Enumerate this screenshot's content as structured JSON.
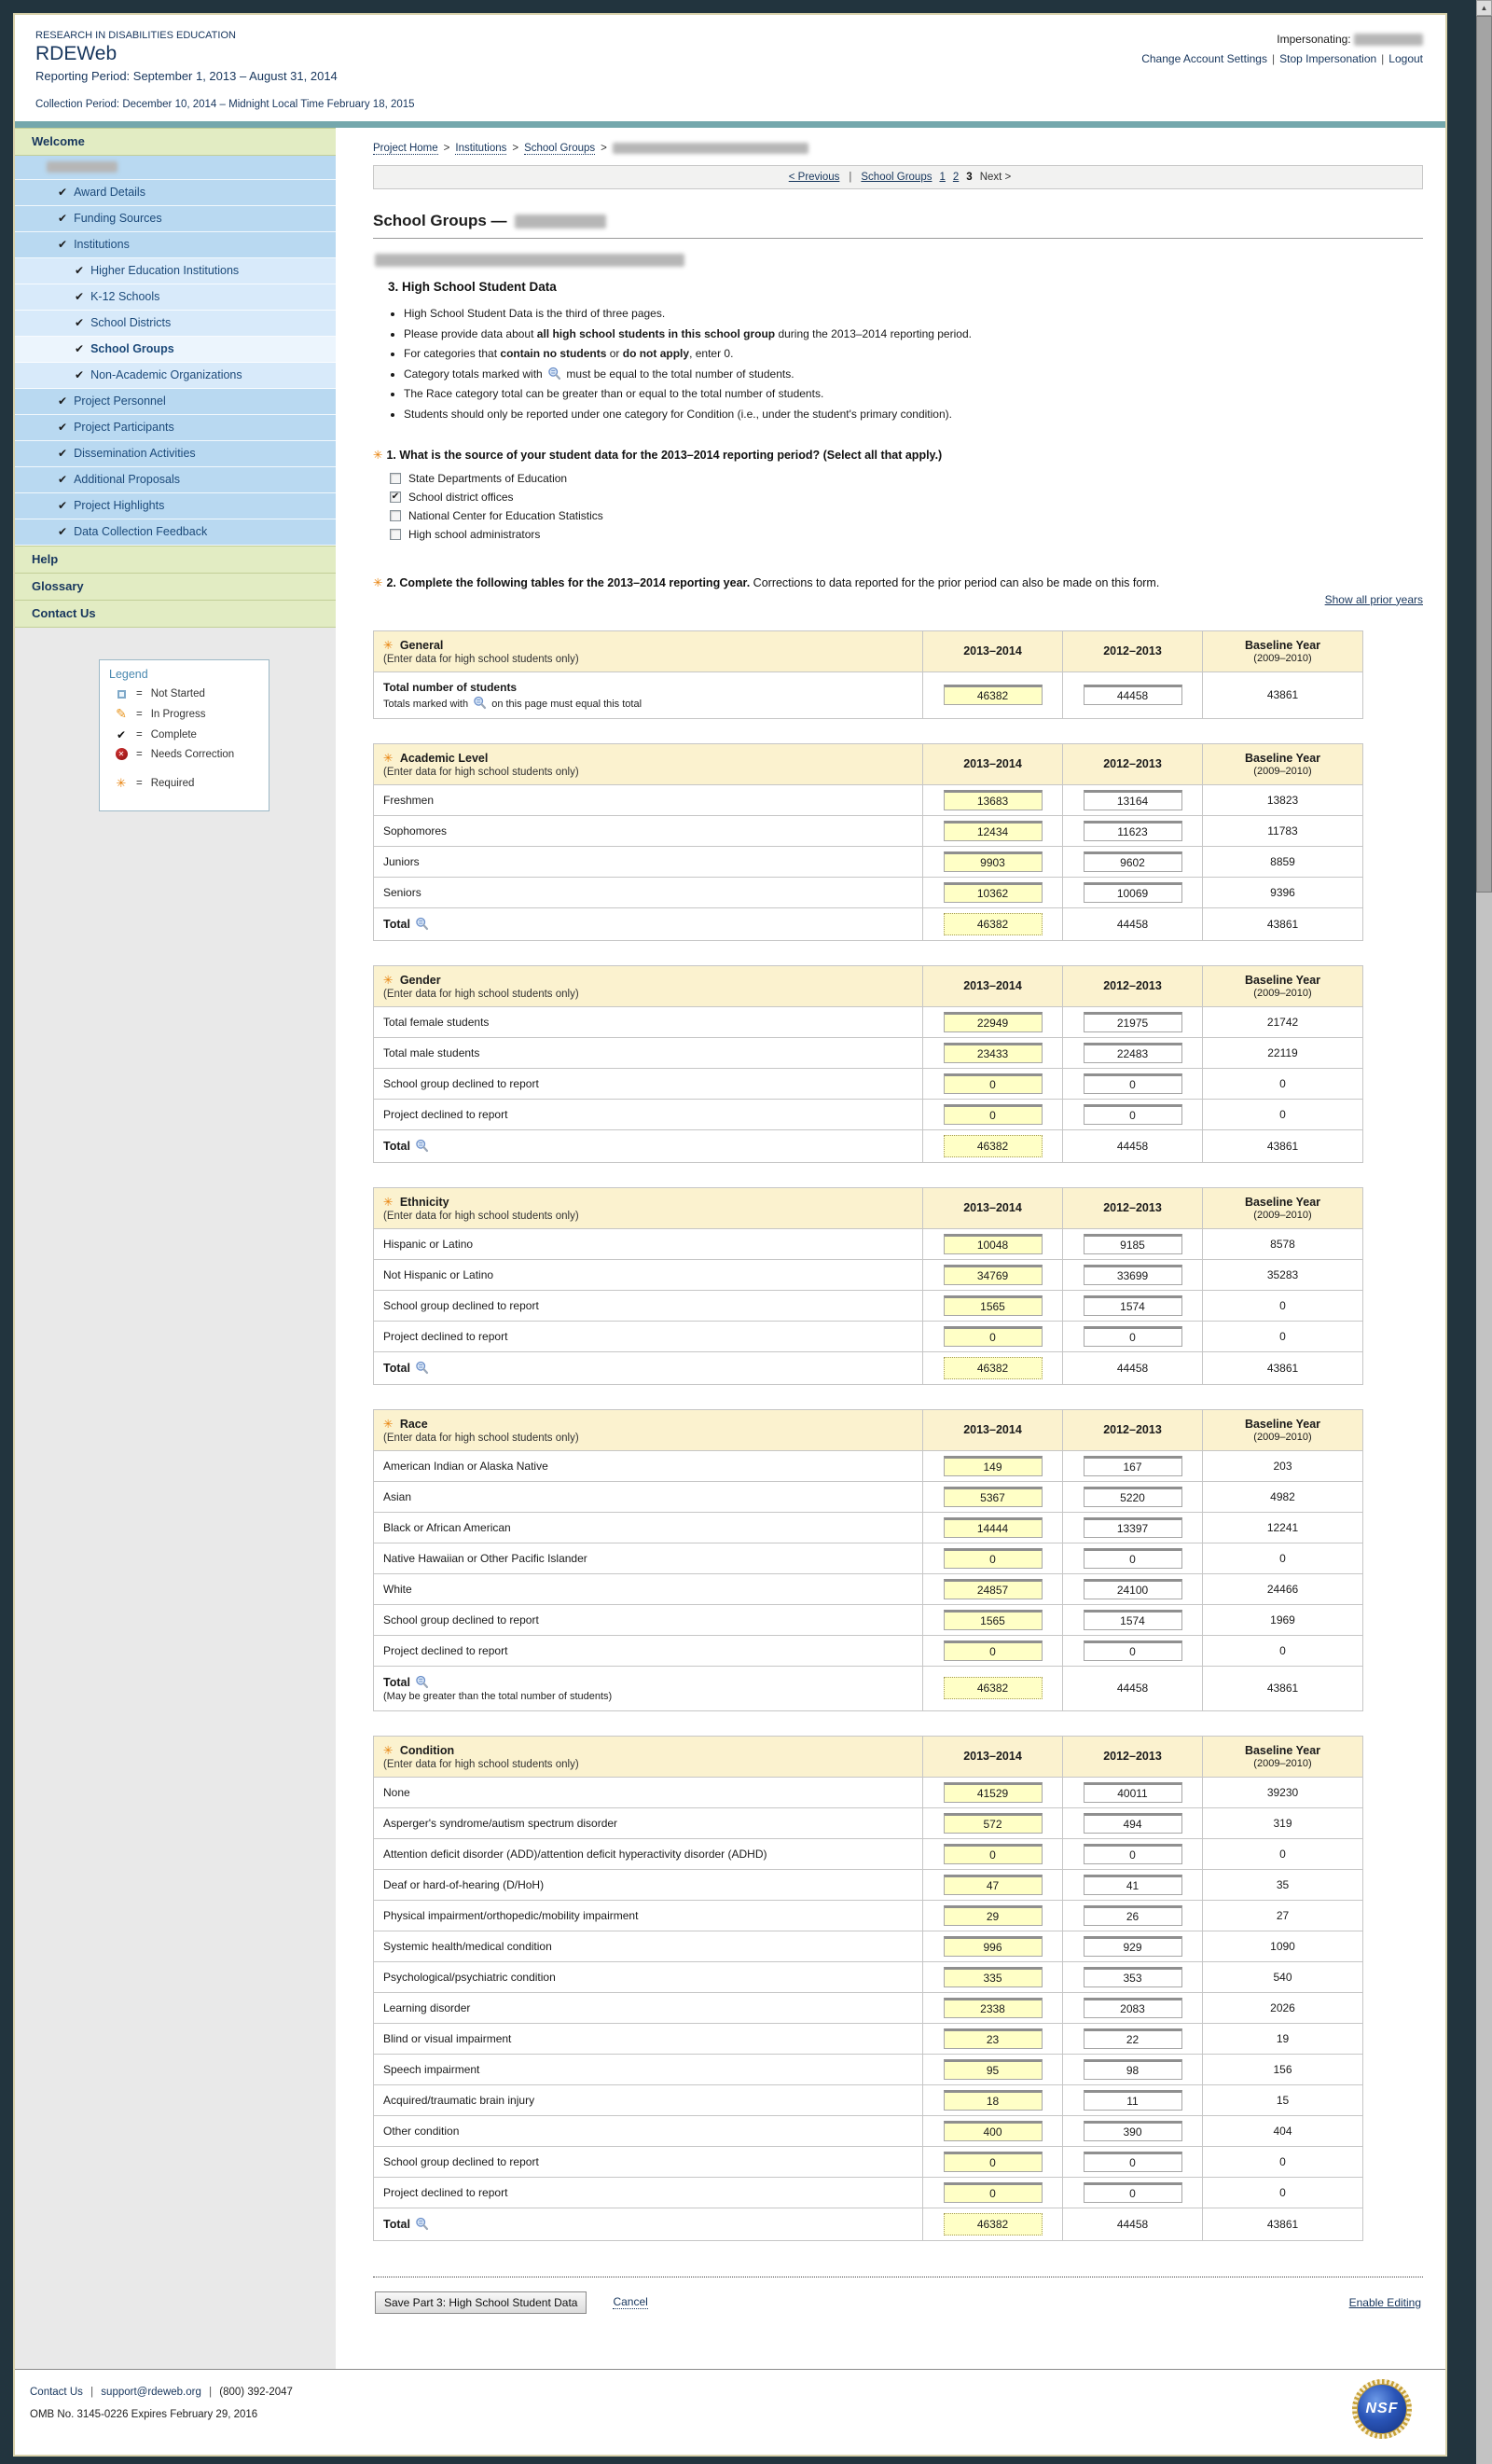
{
  "header": {
    "org": "RESEARCH IN DISABILITIES EDUCATION",
    "app": "RDEWeb",
    "reporting_period": "Reporting Period: September 1, 2013 – August 31, 2014",
    "collection_period": "Collection Period: December 10, 2014 – Midnight Local Time February 18, 2015",
    "impersonating_label": "Impersonating:",
    "links": [
      "Change Account Settings",
      "Stop Impersonation",
      "Logout"
    ]
  },
  "marks": {
    "required": "✳",
    "check": "✔",
    "sep": "|",
    "crumb_sep": ">"
  },
  "sidebar": {
    "items": [
      {
        "type": "header",
        "label": "Welcome"
      },
      {
        "type": "redacted"
      },
      {
        "type": "item",
        "label": "Award Details",
        "check": true
      },
      {
        "type": "item",
        "label": "Funding Sources",
        "check": true
      },
      {
        "type": "item",
        "label": "Institutions",
        "check": true
      },
      {
        "type": "subitem",
        "label": "Higher Education Institutions",
        "check": true
      },
      {
        "type": "subitem",
        "label": "K-12 Schools",
        "check": true
      },
      {
        "type": "subitem",
        "label": "School Districts",
        "check": true
      },
      {
        "type": "subitem",
        "label": "School Groups",
        "check": true,
        "active": true
      },
      {
        "type": "subitem",
        "label": "Non-Academic Organizations",
        "check": true
      },
      {
        "type": "item",
        "label": "Project Personnel",
        "check": true
      },
      {
        "type": "item",
        "label": "Project Participants",
        "check": true
      },
      {
        "type": "item",
        "label": "Dissemination Activities",
        "check": true
      },
      {
        "type": "item",
        "label": "Additional Proposals",
        "check": true
      },
      {
        "type": "item",
        "label": "Project Highlights",
        "check": true
      },
      {
        "type": "item",
        "label": "Data Collection Feedback",
        "check": true
      },
      {
        "type": "header",
        "label": "Help"
      },
      {
        "type": "header",
        "label": "Glossary"
      },
      {
        "type": "header",
        "label": "Contact Us"
      }
    ],
    "legend": {
      "title": "Legend",
      "eq": "=",
      "items": [
        {
          "icon": "not-started",
          "label": "Not Started"
        },
        {
          "icon": "in-progress",
          "label": "In Progress"
        },
        {
          "icon": "complete",
          "label": "Complete"
        },
        {
          "icon": "needs-correction",
          "label": "Needs Correction"
        },
        {
          "icon": "required",
          "label": "Required",
          "gap": true
        }
      ]
    }
  },
  "breadcrumb": {
    "links": [
      "Project Home",
      "Institutions",
      "School Groups"
    ]
  },
  "pagination": {
    "previous": "< Previous",
    "section": "School Groups",
    "pages": [
      "1",
      "2"
    ],
    "current": "3",
    "next": "Next >"
  },
  "page": {
    "title": "School Groups —",
    "section_heading": "3. High School Student Data"
  },
  "instructions": [
    {
      "parts": [
        {
          "t": "High School Student Data is the third of three pages."
        }
      ]
    },
    {
      "parts": [
        {
          "t": "Please provide data about "
        },
        {
          "t": "all high school students in this school group",
          "b": true
        },
        {
          "t": " during the 2013–2014 reporting period."
        }
      ]
    },
    {
      "parts": [
        {
          "t": "For categories that "
        },
        {
          "t": "contain no students",
          "b": true
        },
        {
          "t": " or "
        },
        {
          "t": "do not apply",
          "b": true
        },
        {
          "t": ", enter 0."
        }
      ]
    },
    {
      "parts": [
        {
          "t": "Category totals marked with "
        },
        {
          "ic": true
        },
        {
          "t": " must be equal to the total number of students."
        }
      ]
    },
    {
      "parts": [
        {
          "t": "The Race category total can be greater than or equal to the total number of students."
        }
      ]
    },
    {
      "parts": [
        {
          "t": "Students should only be reported under one category for Condition (i.e., under the student's primary condition)."
        }
      ]
    }
  ],
  "q1": {
    "text": "1. What is the source of your student data for the 2013–2014 reporting period? (Select all that apply.)",
    "options": [
      {
        "label": "State Departments of Education",
        "checked": false
      },
      {
        "label": "School district offices",
        "checked": true
      },
      {
        "label": "National Center for Education Statistics",
        "checked": false
      },
      {
        "label": "High school administrators",
        "checked": false
      }
    ]
  },
  "q2": {
    "bold": "2. Complete the following tables for the 2013–2014 reporting year.",
    "normal": "Corrections to data reported for the prior period can also be made on this form.",
    "link": "Show all prior years"
  },
  "table_subtitle": "(Enter data for high school students only)",
  "table_columns": {
    "y1": "2013–2014",
    "y2": "2012–2013",
    "b1": "Baseline Year",
    "b2": "(2009–2010)"
  },
  "tables": [
    {
      "name": "General",
      "rows": [
        {
          "label": "Total number of students",
          "bold": true,
          "note_pre": "Totals marked with ",
          "note_icon": true,
          "note_post": " on this page must equal this total",
          "v1": "46382",
          "v2": "44458",
          "v3": "43861"
        }
      ]
    },
    {
      "name": "Academic Level",
      "rows": [
        {
          "label": "Freshmen",
          "v1": "13683",
          "v2": "13164",
          "v3": "13823"
        },
        {
          "label": "Sophomores",
          "v1": "12434",
          "v2": "11623",
          "v3": "11783"
        },
        {
          "label": "Juniors",
          "v1": "9903",
          "v2": "9602",
          "v3": "8859"
        },
        {
          "label": "Seniors",
          "v1": "10362",
          "v2": "10069",
          "v3": "9396"
        }
      ],
      "total": {
        "label": "Total",
        "v1": "46382",
        "v2": "44458",
        "v3": "43861"
      }
    },
    {
      "name": "Gender",
      "rows": [
        {
          "label": "Total female students",
          "v1": "22949",
          "v2": "21975",
          "v3": "21742"
        },
        {
          "label": "Total male students",
          "v1": "23433",
          "v2": "22483",
          "v3": "22119"
        },
        {
          "label": "School group declined to report",
          "v1": "0",
          "v2": "0",
          "v3": "0"
        },
        {
          "label": "Project declined to report",
          "v1": "0",
          "v2": "0",
          "v3": "0"
        }
      ],
      "total": {
        "label": "Total",
        "v1": "46382",
        "v2": "44458",
        "v3": "43861"
      }
    },
    {
      "name": "Ethnicity",
      "rows": [
        {
          "label": "Hispanic or Latino",
          "v1": "10048",
          "v2": "9185",
          "v3": "8578"
        },
        {
          "label": "Not Hispanic or Latino",
          "v1": "34769",
          "v2": "33699",
          "v3": "35283"
        },
        {
          "label": "School group declined to report",
          "v1": "1565",
          "v2": "1574",
          "v3": "0"
        },
        {
          "label": "Project declined to report",
          "v1": "0",
          "v2": "0",
          "v3": "0"
        }
      ],
      "total": {
        "label": "Total",
        "v1": "46382",
        "v2": "44458",
        "v3": "43861"
      }
    },
    {
      "name": "Race",
      "rows": [
        {
          "label": "American Indian or Alaska Native",
          "v1": "149",
          "v2": "167",
          "v3": "203"
        },
        {
          "label": "Asian",
          "v1": "5367",
          "v2": "5220",
          "v3": "4982"
        },
        {
          "label": "Black or African American",
          "v1": "14444",
          "v2": "13397",
          "v3": "12241"
        },
        {
          "label": "Native Hawaiian or Other Pacific Islander",
          "v1": "0",
          "v2": "0",
          "v3": "0"
        },
        {
          "label": "White",
          "v1": "24857",
          "v2": "24100",
          "v3": "24466"
        },
        {
          "label": "School group declined to report",
          "v1": "1565",
          "v2": "1574",
          "v3": "1969"
        },
        {
          "label": "Project declined to report",
          "v1": "0",
          "v2": "0",
          "v3": "0"
        }
      ],
      "total": {
        "label": "Total",
        "note": "(May be greater than the total number of students)",
        "v1": "46382",
        "v2": "44458",
        "v3": "43861"
      }
    },
    {
      "name": "Condition",
      "rows": [
        {
          "label": "None",
          "v1": "41529",
          "v2": "40011",
          "v3": "39230"
        },
        {
          "label": "Asperger's syndrome/autism spectrum disorder",
          "v1": "572",
          "v2": "494",
          "v3": "319"
        },
        {
          "label": "Attention deficit disorder (ADD)/attention deficit hyperactivity disorder (ADHD)",
          "v1": "0",
          "v2": "0",
          "v3": "0"
        },
        {
          "label": "Deaf or hard-of-hearing (D/HoH)",
          "v1": "47",
          "v2": "41",
          "v3": "35"
        },
        {
          "label": "Physical impairment/orthopedic/mobility impairment",
          "v1": "29",
          "v2": "26",
          "v3": "27"
        },
        {
          "label": "Systemic health/medical condition",
          "v1": "996",
          "v2": "929",
          "v3": "1090"
        },
        {
          "label": "Psychological/psychiatric condition",
          "v1": "335",
          "v2": "353",
          "v3": "540"
        },
        {
          "label": "Learning disorder",
          "v1": "2338",
          "v2": "2083",
          "v3": "2026"
        },
        {
          "label": "Blind or visual impairment",
          "v1": "23",
          "v2": "22",
          "v3": "19"
        },
        {
          "label": "Speech impairment",
          "v1": "95",
          "v2": "98",
          "v3": "156"
        },
        {
          "label": "Acquired/traumatic brain injury",
          "v1": "18",
          "v2": "11",
          "v3": "15"
        },
        {
          "label": "Other condition",
          "v1": "400",
          "v2": "390",
          "v3": "404"
        },
        {
          "label": "School group declined to report",
          "v1": "0",
          "v2": "0",
          "v3": "0"
        },
        {
          "label": "Project declined to report",
          "v1": "0",
          "v2": "0",
          "v3": "0"
        }
      ],
      "total": {
        "label": "Total",
        "v1": "46382",
        "v2": "44458",
        "v3": "43861"
      }
    }
  ],
  "actions": {
    "save": "Save Part 3: High School Student Data",
    "cancel": "Cancel",
    "enable": "Enable Editing"
  },
  "footer": {
    "contact": "Contact Us",
    "email": "support@rdeweb.org",
    "phone": "(800) 392-2047",
    "omb": "OMB No. 3145-0226 Expires February 29, 2016",
    "nsf": "NSF"
  }
}
